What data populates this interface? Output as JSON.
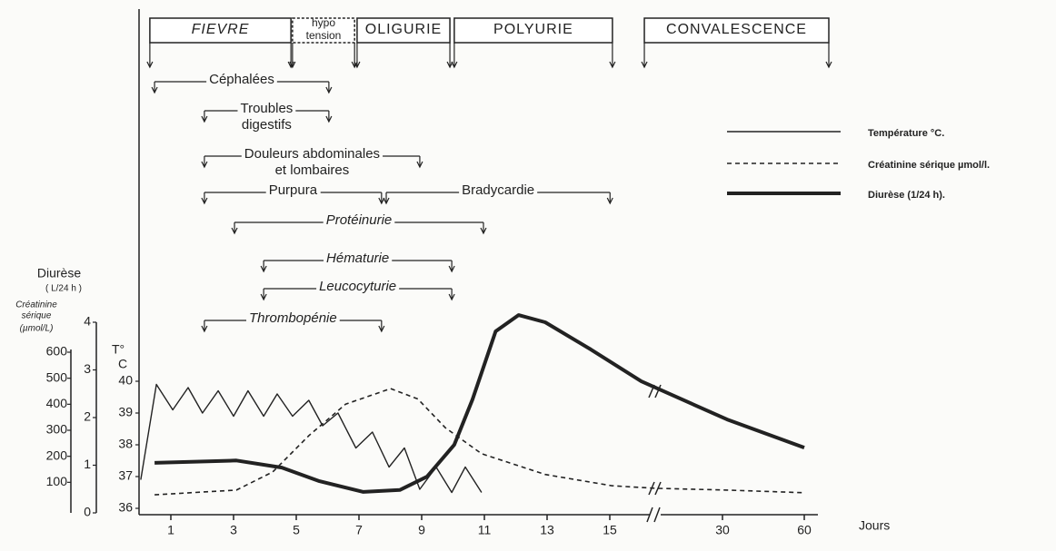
{
  "chart_data": {
    "type": "line",
    "xlabel": "Jours",
    "xticks": [
      1,
      3,
      5,
      7,
      9,
      11,
      13,
      15,
      30,
      60
    ],
    "ylabel": [
      "Diurèse",
      "( L/24 h )"
    ],
    "ylim": [
      0,
      4
    ],
    "yticks": [
      0,
      1,
      2,
      3,
      4
    ],
    "y2label": [
      "Créatinine",
      "sérique",
      "(µmol/L)"
    ],
    "y2lim": [
      0,
      600
    ],
    "y2ticks": [
      100,
      200,
      300,
      400,
      500,
      600
    ],
    "y3label": [
      "T°",
      "C"
    ],
    "y3lim": [
      36,
      40
    ],
    "y3ticks": [
      36,
      37,
      38,
      39,
      40
    ],
    "series": [
      {
        "name": "Température °C.",
        "axis": "y3",
        "color": "#222222",
        "style": "thin",
        "x": [
          0.04,
          0.54,
          1.06,
          1.55,
          2.01,
          2.51,
          3.0,
          3.46,
          3.96,
          4.39,
          4.88,
          5.4,
          5.84,
          6.33,
          6.9,
          7.43,
          7.96,
          8.45,
          8.94,
          9.46,
          9.96,
          10.39,
          10.91
        ],
        "values": [
          36.9,
          39.9,
          39.1,
          39.8,
          39.0,
          39.7,
          38.9,
          39.7,
          38.9,
          39.6,
          38.9,
          39.4,
          38.6,
          39.0,
          37.9,
          38.4,
          37.3,
          37.9,
          36.6,
          37.3,
          36.5,
          37.3,
          36.5
        ]
      },
      {
        "name": "Créatinine sérique µmol/l.",
        "axis": "y2",
        "color": "#222222",
        "style": "dashed",
        "x": [
          0.48,
          3.09,
          4.25,
          5.41,
          6.57,
          8.01,
          8.88,
          9.75,
          10.91,
          12.94,
          15.26,
          21,
          31.7,
          60
        ],
        "values": [
          52,
          70,
          140,
          280,
          400,
          460,
          420,
          310,
          210,
          130,
          87,
          77,
          70,
          60
        ]
      },
      {
        "name": "Diurèse (1/24 h).",
        "axis": "y",
        "color": "#222222",
        "style": "thick",
        "x": [
          0.48,
          3.09,
          4.54,
          5.71,
          7.14,
          8.3,
          9.17,
          10.04,
          10.62,
          11.36,
          12.09,
          12.94,
          14.39,
          19.2,
          31.7,
          60
        ],
        "values": [
          1.05,
          1.1,
          0.95,
          0.67,
          0.44,
          0.48,
          0.76,
          1.43,
          2.38,
          3.81,
          4.15,
          4.0,
          3.43,
          2.76,
          1.96,
          1.37
        ]
      }
    ],
    "phases": [
      {
        "label": [
          "FIEVRE"
        ],
        "start": 0.33,
        "end": 4.83,
        "dashed": false
      },
      {
        "label": [
          "hypo",
          "tension"
        ],
        "start": 4.88,
        "end": 6.86,
        "dashed": true
      },
      {
        "label": [
          "OLIGURIE"
        ],
        "start": 6.94,
        "end": 9.9,
        "dashed": false
      },
      {
        "label": [
          "POLYURIE"
        ],
        "start": 10.04,
        "end": 15.35,
        "dashed": false
      },
      {
        "label": [
          "CONVALESCENCE"
        ],
        "start": 19.6,
        "end": 69,
        "dashed": false
      }
    ],
    "symptoms": [
      {
        "label": [
          "Céphalées"
        ],
        "start": 0.48,
        "end": 6.04
      },
      {
        "label": [
          "Troubles",
          "digestifs"
        ],
        "start": 2.07,
        "end": 6.04
      },
      {
        "label": [
          "Douleurs abdominales",
          "et lombaires"
        ],
        "start": 2.07,
        "end": 8.94
      },
      {
        "label": [
          "Purpura"
        ],
        "start": 2.07,
        "end": 7.72
      },
      {
        "label": [
          "Bradycardie"
        ],
        "start": 7.87,
        "end": 15.03
      },
      {
        "label": [
          "Protéinurie"
        ],
        "start": 3.03,
        "end": 10.97
      },
      {
        "label": [
          "Hématurie"
        ],
        "start": 3.96,
        "end": 9.96
      },
      {
        "label": [
          "Leucocyturie"
        ],
        "start": 3.96,
        "end": 9.96
      },
      {
        "label": [
          "Thrombopénie"
        ],
        "start": 2.07,
        "end": 7.72
      }
    ]
  }
}
